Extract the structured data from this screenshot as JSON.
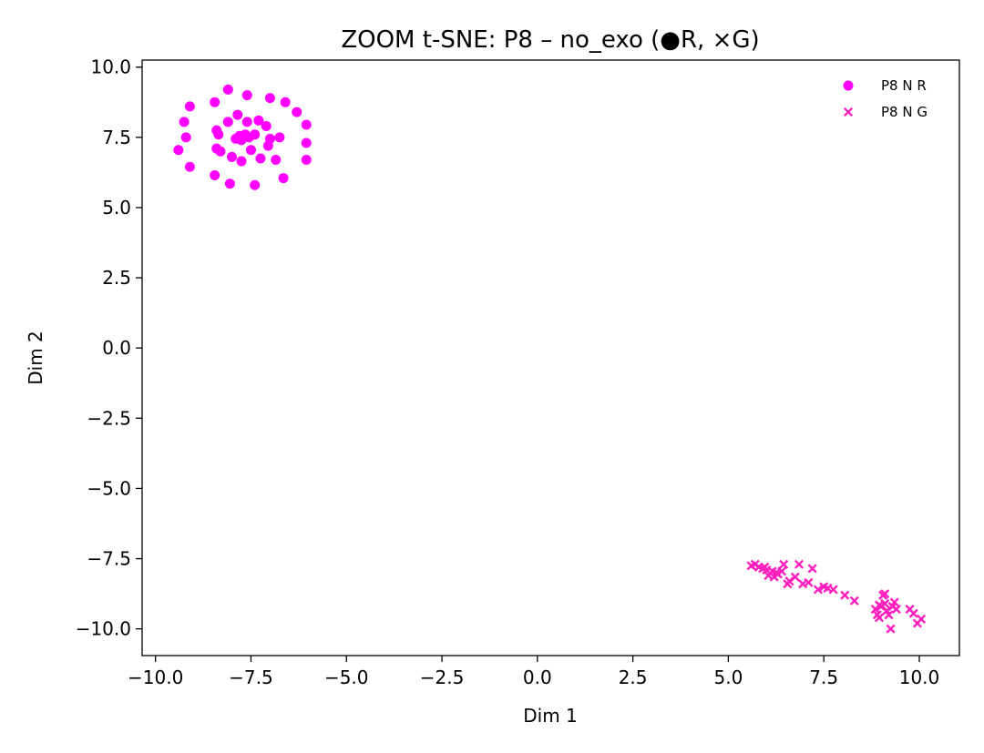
{
  "chart_data": {
    "type": "scatter",
    "title": "ZOOM t-SNE: P8 – no_exo (●R, ×G)",
    "xlabel": "Dim 1",
    "ylabel": "Dim 2",
    "xlim": [
      -10.35,
      11.05
    ],
    "ylim": [
      -10.95,
      10.25
    ],
    "xticks": [
      -10.0,
      -7.5,
      -5.0,
      -2.5,
      0.0,
      2.5,
      5.0,
      7.5,
      10.0
    ],
    "xtick_labels": [
      "−10.0",
      "−7.5",
      "−5.0",
      "−2.5",
      "0.0",
      "2.5",
      "5.0",
      "7.5",
      "10.0"
    ],
    "yticks": [
      10.0,
      7.5,
      5.0,
      2.5,
      0.0,
      -2.5,
      -5.0,
      -7.5,
      -10.0
    ],
    "ytick_labels": [
      "10.0",
      "7.5",
      "5.0",
      "2.5",
      "0.0",
      "−2.5",
      "−5.0",
      "−7.5",
      "−10.0"
    ],
    "grid": false,
    "legend_position": "top-right",
    "series": [
      {
        "name": "P8 N R",
        "marker": "circle",
        "color": "#ff00ff",
        "points": [
          [
            -8.1,
            9.2
          ],
          [
            -7.6,
            9.0
          ],
          [
            -7.0,
            8.9
          ],
          [
            -6.6,
            8.75
          ],
          [
            -8.45,
            8.75
          ],
          [
            -9.1,
            8.6
          ],
          [
            -6.3,
            8.4
          ],
          [
            -7.85,
            8.3
          ],
          [
            -7.3,
            8.1
          ],
          [
            -8.1,
            8.05
          ],
          [
            -7.6,
            8.05
          ],
          [
            -6.05,
            7.95
          ],
          [
            -9.25,
            8.05
          ],
          [
            -7.1,
            7.9
          ],
          [
            -8.4,
            7.75
          ],
          [
            -7.65,
            7.6
          ],
          [
            -7.4,
            7.6
          ],
          [
            -8.35,
            7.6
          ],
          [
            -7.8,
            7.55
          ],
          [
            -6.75,
            7.5
          ],
          [
            -9.2,
            7.5
          ],
          [
            -7.55,
            7.5
          ],
          [
            -7.9,
            7.45
          ],
          [
            -7.0,
            7.45
          ],
          [
            -7.75,
            7.4
          ],
          [
            -6.05,
            7.3
          ],
          [
            -7.05,
            7.2
          ],
          [
            -8.4,
            7.1
          ],
          [
            -7.5,
            7.05
          ],
          [
            -9.4,
            7.05
          ],
          [
            -8.3,
            7.0
          ],
          [
            -8.0,
            6.8
          ],
          [
            -7.25,
            6.75
          ],
          [
            -6.05,
            6.7
          ],
          [
            -6.85,
            6.7
          ],
          [
            -7.75,
            6.65
          ],
          [
            -9.1,
            6.45
          ],
          [
            -8.45,
            6.15
          ],
          [
            -6.65,
            6.05
          ],
          [
            -8.05,
            5.85
          ],
          [
            -7.4,
            5.8
          ]
        ]
      },
      {
        "name": "P8 N G",
        "marker": "x",
        "color": "#ff1fbe",
        "points": [
          [
            5.6,
            -7.75
          ],
          [
            5.7,
            -7.7
          ],
          [
            5.8,
            -7.8
          ],
          [
            5.9,
            -7.85
          ],
          [
            6.0,
            -7.9
          ],
          [
            6.05,
            -8.1
          ],
          [
            6.15,
            -7.95
          ],
          [
            6.2,
            -8.15
          ],
          [
            6.3,
            -8.05
          ],
          [
            6.4,
            -7.95
          ],
          [
            6.45,
            -7.7
          ],
          [
            6.55,
            -8.4
          ],
          [
            6.75,
            -8.15
          ],
          [
            6.85,
            -7.7
          ],
          [
            6.95,
            -8.4
          ],
          [
            7.1,
            -8.35
          ],
          [
            7.2,
            -7.85
          ],
          [
            7.35,
            -8.6
          ],
          [
            7.5,
            -8.5
          ],
          [
            7.6,
            -8.55
          ],
          [
            7.75,
            -8.6
          ],
          [
            8.05,
            -8.8
          ],
          [
            8.3,
            -9.0
          ],
          [
            8.85,
            -9.3
          ],
          [
            8.9,
            -9.5
          ],
          [
            8.95,
            -9.6
          ],
          [
            9.0,
            -9.2
          ],
          [
            9.05,
            -8.8
          ],
          [
            9.1,
            -9.1
          ],
          [
            9.15,
            -9.35
          ],
          [
            9.2,
            -9.5
          ],
          [
            9.25,
            -10.0
          ],
          [
            9.3,
            -9.2
          ],
          [
            9.35,
            -9.05
          ],
          [
            9.4,
            -9.3
          ],
          [
            9.75,
            -9.3
          ],
          [
            9.85,
            -9.45
          ],
          [
            9.95,
            -9.8
          ],
          [
            10.05,
            -9.65
          ],
          [
            9.1,
            -8.75
          ],
          [
            8.95,
            -9.15
          ],
          [
            6.25,
            -8.0
          ],
          [
            5.95,
            -7.8
          ],
          [
            6.6,
            -8.3
          ]
        ]
      }
    ]
  }
}
